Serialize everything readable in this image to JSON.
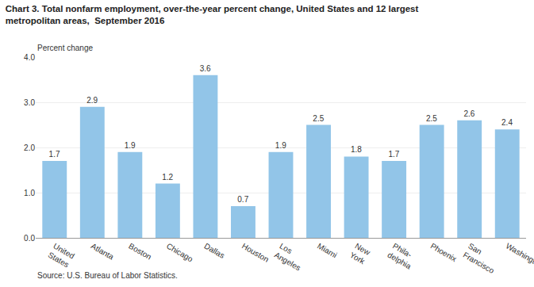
{
  "chart_data": {
    "type": "bar",
    "title": "Chart 3. Total nonfarm employment, over-the-year percent change, United States and 12 largest\nmetropolitan areas,  September 2016",
    "ylabel": "Percent change",
    "source": "Source: U.S. Bureau of Labor Statistics.",
    "categories": [
      "United\nStates",
      "Atlanta",
      "Boston",
      "Chicago",
      "Dallas",
      "Houston",
      "Los\nAngeles",
      "Miami",
      "New\nYork",
      "Phila-\ndelphia",
      "Phoenix",
      "San\nFrancisco",
      "Washington"
    ],
    "values": [
      1.7,
      2.9,
      1.9,
      1.2,
      3.6,
      0.7,
      1.9,
      2.5,
      1.8,
      1.7,
      2.5,
      2.6,
      2.4
    ],
    "color": "#92C5E8",
    "ylim": [
      0,
      4.0
    ],
    "yticks": [
      {
        "value": 0.0,
        "label": "0.0"
      },
      {
        "value": 1.0,
        "label": "1.0"
      },
      {
        "value": 2.0,
        "label": "2.0"
      },
      {
        "value": 3.0,
        "label": "3.0"
      },
      {
        "value": 4.0,
        "label": "4.0"
      }
    ],
    "grid": true,
    "data_labels": true
  }
}
